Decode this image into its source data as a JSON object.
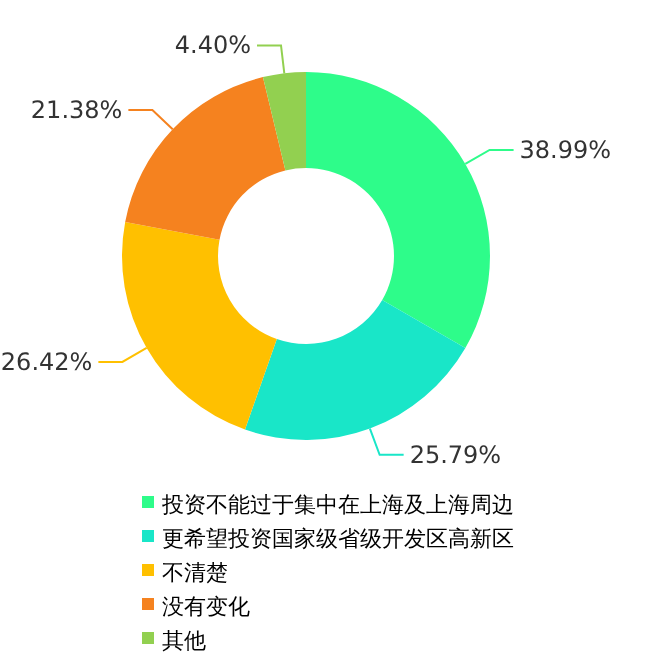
{
  "chart_data": {
    "type": "donut",
    "categories": [
      "投资不能过于集中在上海及上海周边",
      "更希望投资国家级省级开发区高新区",
      "不清楚",
      "没有变化",
      "其他"
    ],
    "values": [
      38.99,
      25.79,
      26.42,
      21.38,
      4.4
    ],
    "value_labels": [
      "38.99%",
      "25.79%",
      "26.42%",
      "21.38%",
      "4.40%"
    ],
    "colors": [
      "#2efc8a",
      "#19e6c8",
      "#ffc000",
      "#f5821f",
      "#92d050"
    ],
    "legend": "bottom"
  }
}
